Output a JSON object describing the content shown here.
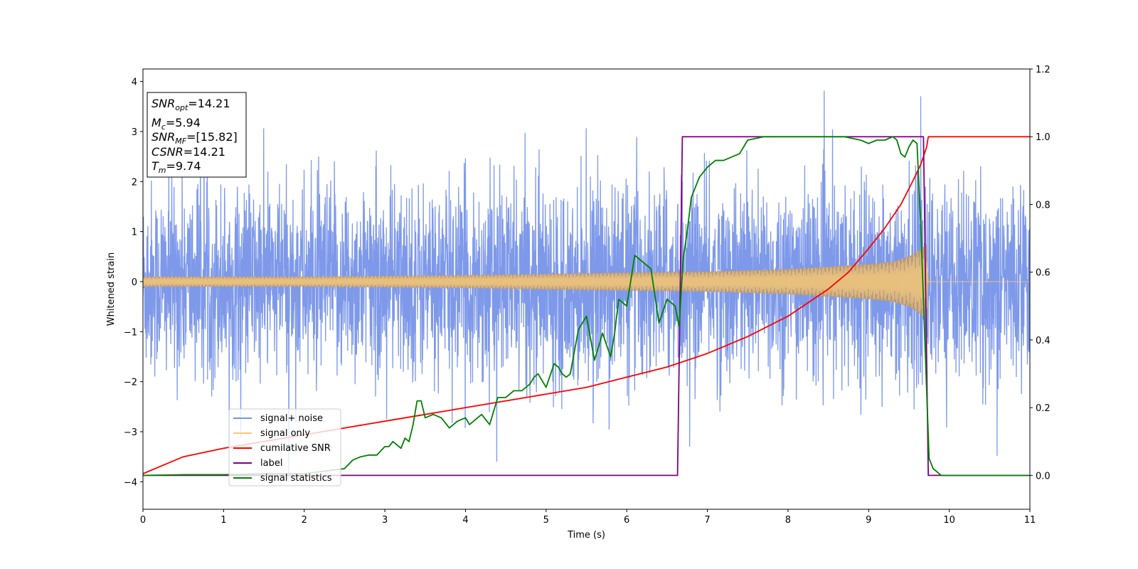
{
  "chart_data": {
    "type": "line",
    "xlabel": "Time (s)",
    "ylabel": "Whitened strain",
    "xlim": [
      0,
      11
    ],
    "ylim": [
      -4.55,
      4.25
    ],
    "y2lim": [
      -0.1,
      1.2
    ],
    "x_ticks": [
      0,
      1,
      2,
      3,
      4,
      5,
      6,
      7,
      8,
      9,
      10,
      11
    ],
    "y_ticks": [
      -4,
      -3,
      -2,
      -1,
      0,
      1,
      2,
      3,
      4
    ],
    "y2_ticks": [
      0.0,
      0.2,
      0.4,
      0.6,
      0.8,
      1.0,
      1.2
    ],
    "y_tick_labels": [
      "−4",
      "−3",
      "−2",
      "−1",
      "0",
      "1",
      "2",
      "3",
      "4"
    ],
    "y2_tick_labels": [
      "0.0",
      "0.2",
      "0.4",
      "0.6",
      "0.8",
      "1.0",
      "1.2"
    ],
    "legend_position": "lower-left",
    "annotation": {
      "snr_opt": {
        "sym": "SNR",
        "sub": "opt",
        "value": "=14.21"
      },
      "mc": {
        "sym": "M",
        "sub": "c",
        "value": "=5.94"
      },
      "snr_mf": {
        "sym": "SNR",
        "sub": "MF",
        "value": "=[15.82]"
      },
      "csnr": {
        "sym": "CSNR",
        "value": "=14.21"
      },
      "tm": {
        "sym": "T",
        "sub": "m",
        "value": "=9.74"
      }
    },
    "series": [
      {
        "name": "signal+ noise",
        "color": "#7794e8",
        "axis": "left",
        "kind": "noise",
        "spread": 0.95,
        "merger_time": 9.74,
        "note_x_range": [
          0,
          11
        ]
      },
      {
        "name": "signal only",
        "color": "#f5c97e",
        "fill_color": "#b89a78",
        "axis": "left",
        "kind": "chirp",
        "envelope": [
          [
            0,
            0.1
          ],
          [
            2,
            0.1
          ],
          [
            4,
            0.13
          ],
          [
            6,
            0.18
          ],
          [
            7,
            0.2
          ],
          [
            8,
            0.25
          ],
          [
            8.5,
            0.3
          ],
          [
            9,
            0.35
          ],
          [
            9.3,
            0.4
          ],
          [
            9.5,
            0.5
          ],
          [
            9.65,
            0.65
          ],
          [
            9.72,
            0.75
          ],
          [
            9.74,
            0.0
          ],
          [
            11,
            0.0
          ]
        ]
      },
      {
        "name": "cumilative SNR",
        "color": "#ff0000",
        "axis": "right",
        "x": [
          0,
          0.5,
          1,
          1.5,
          2,
          2.5,
          3,
          3.5,
          4,
          4.5,
          5,
          5.5,
          6,
          6.5,
          7,
          7.5,
          8,
          8.25,
          8.5,
          8.75,
          9,
          9.2,
          9.4,
          9.55,
          9.65,
          9.72,
          9.74,
          11
        ],
        "values": [
          0.005,
          0.055,
          0.08,
          0.1,
          0.12,
          0.14,
          0.16,
          0.18,
          0.2,
          0.22,
          0.24,
          0.26,
          0.29,
          0.32,
          0.36,
          0.41,
          0.47,
          0.51,
          0.55,
          0.6,
          0.67,
          0.73,
          0.8,
          0.87,
          0.92,
          0.97,
          1.0,
          1.0
        ]
      },
      {
        "name": "label",
        "color": "#800080",
        "axis": "right",
        "x": [
          0,
          6.63,
          6.69,
          9.68,
          9.74,
          11
        ],
        "values": [
          0,
          0,
          1,
          1,
          0,
          0
        ]
      },
      {
        "name": "signal statistics",
        "color": "#008000",
        "axis": "right",
        "x": [
          0,
          0.5,
          1,
          1.5,
          2,
          2.5,
          2.6,
          2.7,
          2.8,
          2.9,
          3.0,
          3.05,
          3.1,
          3.2,
          3.25,
          3.3,
          3.35,
          3.4,
          3.45,
          3.5,
          3.6,
          3.7,
          3.8,
          3.9,
          4.0,
          4.05,
          4.1,
          4.2,
          4.3,
          4.4,
          4.5,
          4.6,
          4.7,
          4.8,
          4.85,
          4.9,
          5.0,
          5.1,
          5.15,
          5.2,
          5.25,
          5.3,
          5.4,
          5.5,
          5.6,
          5.7,
          5.8,
          5.85,
          5.9,
          6.0,
          6.1,
          6.2,
          6.3,
          6.4,
          6.5,
          6.6,
          6.65,
          6.7,
          6.75,
          6.8,
          6.9,
          7.0,
          7.1,
          7.2,
          7.3,
          7.4,
          7.5,
          7.7,
          7.9,
          8.1,
          8.3,
          8.5,
          8.7,
          8.9,
          9.0,
          9.1,
          9.2,
          9.3,
          9.35,
          9.4,
          9.45,
          9.5,
          9.55,
          9.6,
          9.65,
          9.7,
          9.75,
          9.8,
          9.9,
          10,
          11
        ],
        "values": [
          0.0,
          0.002,
          0.002,
          0.005,
          0.005,
          0.02,
          0.045,
          0.055,
          0.06,
          0.06,
          0.085,
          0.085,
          0.1,
          0.08,
          0.11,
          0.1,
          0.15,
          0.22,
          0.22,
          0.17,
          0.18,
          0.17,
          0.14,
          0.16,
          0.17,
          0.15,
          0.16,
          0.18,
          0.15,
          0.23,
          0.23,
          0.25,
          0.25,
          0.27,
          0.29,
          0.3,
          0.26,
          0.33,
          0.32,
          0.3,
          0.29,
          0.3,
          0.43,
          0.47,
          0.34,
          0.42,
          0.35,
          0.42,
          0.52,
          0.5,
          0.65,
          0.63,
          0.61,
          0.45,
          0.52,
          0.5,
          0.44,
          0.64,
          0.72,
          0.82,
          0.88,
          0.91,
          0.93,
          0.93,
          0.94,
          0.95,
          0.99,
          1.0,
          1.0,
          1.0,
          1.0,
          1.0,
          1.0,
          0.99,
          0.98,
          0.99,
          0.99,
          1.0,
          0.99,
          0.95,
          0.94,
          0.97,
          0.99,
          0.98,
          0.72,
          0.38,
          0.05,
          0.02,
          0.0,
          0.0,
          0.0
        ]
      }
    ]
  }
}
